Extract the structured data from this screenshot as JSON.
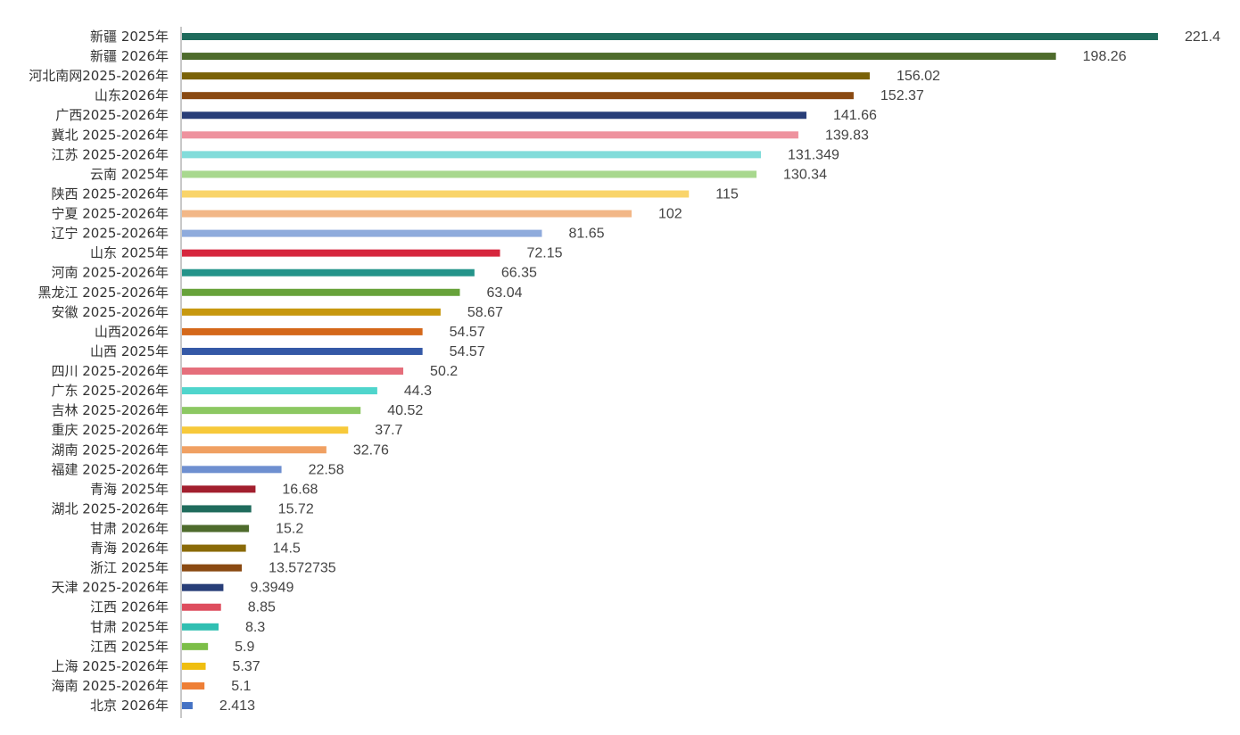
{
  "chart_data": {
    "type": "bar",
    "orientation": "horizontal",
    "title": "",
    "xlabel": "",
    "ylabel": "",
    "xlim": [
      0,
      240
    ],
    "grid": false,
    "legend": "none",
    "categories": [
      "新疆 2025年",
      "新疆 2026年",
      "河北南网2025-2026年",
      "山东2026年",
      "广西2025-2026年",
      "冀北 2025-2026年",
      "江苏 2025-2026年",
      "云南 2025年",
      "陕西 2025-2026年",
      "宁夏 2025-2026年",
      "辽宁 2025-2026年",
      "山东 2025年",
      "河南 2025-2026年",
      "黑龙江 2025-2026年",
      "安徽 2025-2026年",
      "山西2026年",
      "山西 2025年",
      "四川 2025-2026年",
      "广东 2025-2026年",
      "吉林 2025-2026年",
      "重庆 2025-2026年",
      "湖南 2025-2026年",
      "福建 2025-2026年",
      "青海 2025年",
      "湖北 2025-2026年",
      "甘肃 2026年",
      "青海 2026年",
      "浙江 2025年",
      "天津 2025-2026年",
      "江西 2026年",
      "甘肃 2025年",
      "江西 2025年",
      "上海 2025-2026年",
      "海南 2025-2026年",
      "北京 2026年"
    ],
    "values": [
      221.4,
      198.26,
      156.02,
      152.37,
      141.66,
      139.83,
      131.349,
      130.34,
      115,
      102,
      81.65,
      72.15,
      66.35,
      63.04,
      58.67,
      54.57,
      54.57,
      50.2,
      44.3,
      40.52,
      37.7,
      32.76,
      22.58,
      16.68,
      15.72,
      15.2,
      14.5,
      13.572735,
      9.3949,
      8.85,
      8.3,
      5.9,
      5.37,
      5.1,
      2.413
    ],
    "value_labels": [
      "221.4",
      "198.26",
      "156.02",
      "152.37",
      "141.66",
      "139.83",
      "131.349",
      "130.34",
      "115",
      "102",
      "81.65",
      "72.15",
      "66.35",
      "63.04",
      "58.67",
      "54.57",
      "54.57",
      "50.2",
      "44.3",
      "40.52",
      "37.7",
      "32.76",
      "22.58",
      "16.68",
      "15.72",
      "15.2",
      "14.5",
      "13.572735",
      "9.3949",
      "8.85",
      "8.3",
      "5.9",
      "5.37",
      "5.1",
      "2.413"
    ],
    "colors": [
      "#1F6B5C",
      "#4E6B2C",
      "#7A6208",
      "#8A4A12",
      "#283E78",
      "#EE929E",
      "#82DCDA",
      "#A8D88E",
      "#F9D46A",
      "#F2B787",
      "#8FABDC",
      "#D6263D",
      "#24948A",
      "#67A23A",
      "#C7980F",
      "#D4681A",
      "#3458A6",
      "#E56E7B",
      "#4FD5CC",
      "#8CC862",
      "#F7C93A",
      "#F0A062",
      "#6E8FD0",
      "#A21F2E",
      "#1F6B5C",
      "#4E6B2C",
      "#8A6A08",
      "#8A4A12",
      "#283E78",
      "#DE4D5E",
      "#30BFB2",
      "#7CBE48",
      "#EFBE10",
      "#EE7F36",
      "#4472C4"
    ],
    "axis_color": "#C8C8C8",
    "label_color": "#333333",
    "value_color": "#444444"
  }
}
